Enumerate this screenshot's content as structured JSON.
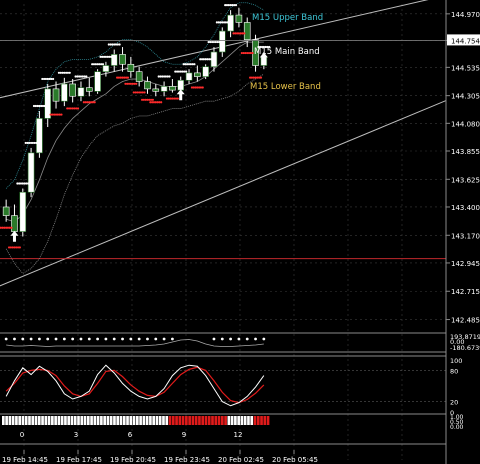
{
  "chart_data": {
    "type": "line",
    "subtype": "candlestick-with-indicators",
    "price_axis": {
      "ticks": [
        "144.970",
        "144.754",
        "144.535",
        "144.305",
        "144.080",
        "143.855",
        "143.625",
        "143.400",
        "143.170",
        "142.945",
        "142.715",
        "142.485"
      ],
      "ylim": [
        142.4,
        145.05
      ],
      "current_price_label": "144.754"
    },
    "time_axis": {
      "labels": [
        "19 Feb 14:45",
        "19 Feb 17:45",
        "19 Feb 20:45",
        "19 Feb 23:45",
        "20 Feb 02:45",
        "20 Feb 05:45"
      ]
    },
    "band_labels": {
      "upper": "M15 Upper Band",
      "main": "M15 Main Band",
      "lower": "M15 Lower Band"
    },
    "band_label_colors": {
      "upper": "#3fc7d8",
      "main": "#ffffff",
      "lower": "#e6c24a"
    },
    "candles": [
      {
        "o": 143.4,
        "h": 143.46,
        "l": 143.28,
        "c": 143.33
      },
      {
        "o": 143.33,
        "h": 143.42,
        "l": 143.12,
        "c": 143.2
      },
      {
        "o": 143.2,
        "h": 143.55,
        "l": 143.16,
        "c": 143.52
      },
      {
        "o": 143.52,
        "h": 143.88,
        "l": 143.48,
        "c": 143.84
      },
      {
        "o": 143.84,
        "h": 144.18,
        "l": 143.8,
        "c": 144.12
      },
      {
        "o": 144.12,
        "h": 144.4,
        "l": 144.05,
        "c": 144.36
      },
      {
        "o": 144.36,
        "h": 144.42,
        "l": 144.2,
        "c": 144.26
      },
      {
        "o": 144.26,
        "h": 144.45,
        "l": 144.22,
        "c": 144.4
      },
      {
        "o": 144.4,
        "h": 144.44,
        "l": 144.25,
        "c": 144.3
      },
      {
        "o": 144.3,
        "h": 144.42,
        "l": 144.26,
        "c": 144.37
      },
      {
        "o": 144.37,
        "h": 144.45,
        "l": 144.3,
        "c": 144.34
      },
      {
        "o": 144.34,
        "h": 144.52,
        "l": 144.32,
        "c": 144.5
      },
      {
        "o": 144.5,
        "h": 144.58,
        "l": 144.46,
        "c": 144.55
      },
      {
        "o": 144.55,
        "h": 144.68,
        "l": 144.5,
        "c": 144.64
      },
      {
        "o": 144.64,
        "h": 144.7,
        "l": 144.5,
        "c": 144.56
      },
      {
        "o": 144.56,
        "h": 144.62,
        "l": 144.45,
        "c": 144.5
      },
      {
        "o": 144.5,
        "h": 144.54,
        "l": 144.38,
        "c": 144.42
      },
      {
        "o": 144.42,
        "h": 144.46,
        "l": 144.32,
        "c": 144.36
      },
      {
        "o": 144.36,
        "h": 144.4,
        "l": 144.3,
        "c": 144.34
      },
      {
        "o": 144.34,
        "h": 144.42,
        "l": 144.3,
        "c": 144.38
      },
      {
        "o": 144.38,
        "h": 144.44,
        "l": 144.33,
        "c": 144.35
      },
      {
        "o": 144.35,
        "h": 144.46,
        "l": 144.32,
        "c": 144.43
      },
      {
        "o": 144.43,
        "h": 144.52,
        "l": 144.4,
        "c": 144.49
      },
      {
        "o": 144.49,
        "h": 144.55,
        "l": 144.42,
        "c": 144.46
      },
      {
        "o": 144.46,
        "h": 144.56,
        "l": 144.44,
        "c": 144.54
      },
      {
        "o": 144.54,
        "h": 144.7,
        "l": 144.5,
        "c": 144.66
      },
      {
        "o": 144.66,
        "h": 144.86,
        "l": 144.62,
        "c": 144.83
      },
      {
        "o": 144.83,
        "h": 145.0,
        "l": 144.78,
        "c": 144.96
      },
      {
        "o": 144.96,
        "h": 145.02,
        "l": 144.86,
        "c": 144.9
      },
      {
        "o": 144.9,
        "h": 144.94,
        "l": 144.7,
        "c": 144.76
      },
      {
        "o": 144.76,
        "h": 144.8,
        "l": 144.5,
        "c": 144.55
      },
      {
        "o": 144.55,
        "h": 144.66,
        "l": 144.52,
        "c": 144.62
      }
    ],
    "bands": {
      "upper": [
        143.55,
        143.62,
        143.78,
        143.98,
        144.2,
        144.42,
        144.52,
        144.58,
        144.6,
        144.6,
        144.6,
        144.62,
        144.66,
        144.72,
        144.76,
        144.76,
        144.74,
        144.7,
        144.64,
        144.58,
        144.56,
        144.56,
        144.58,
        144.62,
        144.7,
        144.8,
        144.92,
        145.02,
        145.06,
        145.06,
        145.04,
        145.0
      ],
      "main": [
        143.3,
        143.28,
        143.34,
        143.46,
        143.62,
        143.8,
        143.94,
        144.04,
        144.12,
        144.18,
        144.24,
        144.28,
        144.32,
        144.38,
        144.42,
        144.44,
        144.44,
        144.42,
        144.4,
        144.38,
        144.38,
        144.38,
        144.4,
        144.42,
        144.46,
        144.52,
        144.58,
        144.64,
        144.7,
        144.74,
        144.74,
        144.74
      ],
      "lower": [
        143.06,
        142.94,
        142.86,
        142.9,
        142.98,
        143.12,
        143.3,
        143.5,
        143.66,
        143.8,
        143.9,
        143.98,
        144.02,
        144.06,
        144.08,
        144.12,
        144.14,
        144.14,
        144.16,
        144.18,
        144.2,
        144.2,
        144.22,
        144.24,
        144.26,
        144.26,
        144.28,
        144.3,
        144.34,
        144.4,
        144.44,
        144.48
      ]
    },
    "trendlines": [
      {
        "p1": [
          0,
          144.3
        ],
        "p2": [
          31,
          144.78
        ]
      },
      {
        "p1": [
          0,
          142.78
        ],
        "p2": [
          31,
          143.65
        ]
      },
      {
        "p1": [
          0,
          142.98
        ],
        "p2": [
          31,
          142.98
        ]
      }
    ],
    "up_arrows": [
      {
        "i": 1,
        "price": 143.15
      },
      {
        "i": 21,
        "price": 144.3
      },
      {
        "i": 31,
        "price": 144.6
      }
    ],
    "indicator1": {
      "label_top": "193.8719",
      "label_mid": "0.00",
      "label_bottom": "-180.6739",
      "dots": [
        1,
        1,
        1,
        1,
        1,
        1,
        1,
        1,
        1,
        1,
        1,
        1,
        1,
        1,
        1,
        1,
        1,
        1,
        1,
        1,
        1,
        0,
        0,
        0,
        0,
        1,
        1,
        1,
        1,
        1,
        1,
        1
      ],
      "line": [
        0.2,
        0.1,
        0.1,
        0.15,
        0.1,
        0.05,
        0.1,
        0.1,
        0.1,
        0.1,
        0.1,
        0.1,
        0.1,
        0.1,
        0.1,
        0.1,
        0.1,
        0.15,
        0.2,
        0.3,
        0.5,
        0.7,
        0.75,
        0.6,
        0.3,
        0.1,
        0.05,
        0.05,
        0.1,
        0.15,
        0.2,
        0.3
      ]
    },
    "stochastic": {
      "levels": [
        "100",
        "80",
        "20",
        "0"
      ],
      "main": [
        30,
        60,
        85,
        72,
        88,
        78,
        60,
        35,
        25,
        30,
        40,
        72,
        90,
        75,
        55,
        40,
        30,
        25,
        30,
        45,
        70,
        85,
        90,
        88,
        70,
        45,
        20,
        12,
        18,
        30,
        48,
        70
      ],
      "signal": [
        40,
        55,
        75,
        80,
        82,
        80,
        70,
        50,
        35,
        30,
        35,
        55,
        78,
        80,
        68,
        52,
        40,
        32,
        30,
        38,
        55,
        72,
        82,
        86,
        80,
        60,
        38,
        22,
        18,
        24,
        36,
        52
      ]
    },
    "histogram": {
      "levels": [
        "1.00",
        "0.50",
        "0.00"
      ],
      "colors": [
        "w",
        "w",
        "w",
        "w",
        "w",
        "w",
        "w",
        "w",
        "w",
        "w",
        "w",
        "w",
        "w",
        "w",
        "w",
        "w",
        "w",
        "w",
        "w",
        "w",
        "w",
        "w",
        "w",
        "w",
        "w",
        "w",
        "w",
        "w",
        "w",
        "w",
        "w",
        "w",
        "w",
        "w",
        "w",
        "w",
        "w",
        "w",
        "w",
        "w",
        "w",
        "w",
        "w",
        "w",
        "w",
        "w",
        "w",
        "w",
        "w",
        "w",
        "w",
        "r",
        "r",
        "r",
        "r",
        "r",
        "r",
        "r",
        "r",
        "r",
        "r",
        "r",
        "r",
        "r",
        "r",
        "r",
        "r",
        "r",
        "r",
        "w",
        "w",
        "w",
        "w",
        "w",
        "w",
        "w",
        "w",
        "r",
        "r",
        "r",
        "r",
        "r"
      ]
    },
    "sub_x_labels": [
      "0",
      "3",
      "6",
      "9",
      "12"
    ]
  }
}
